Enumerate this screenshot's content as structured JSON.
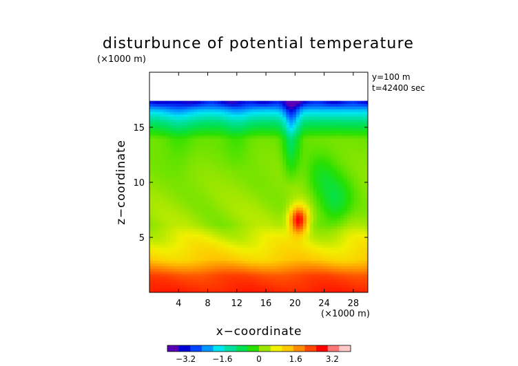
{
  "chart_data": {
    "type": "heatmap",
    "title": "disturbunce of potential temperature",
    "units_label": "(×1000 m)",
    "xlabel": "x−coordinate",
    "ylabel": "z−coordinate",
    "x_units": "(×1000 m)",
    "annotations": [
      "y=100 m",
      "t=42400 sec"
    ],
    "xlim": [
      0,
      30
    ],
    "ylim": [
      0,
      20
    ],
    "x_ticks": [
      4,
      8,
      12,
      16,
      20,
      24,
      28
    ],
    "x_tick_labels": [
      "4",
      "8",
      "12",
      "16",
      "20",
      "24",
      "28"
    ],
    "y_ticks": [
      5,
      10,
      15
    ],
    "y_tick_labels": [
      "5",
      "10",
      "15"
    ],
    "data_top": 17.4,
    "colorbar": {
      "min": -4,
      "max": 4,
      "tick_values": [
        -3.2,
        -1.6,
        0,
        1.6,
        3.2
      ],
      "tick_labels": [
        "−3.2",
        "−1.6",
        "0",
        "1.6",
        "3.2"
      ],
      "colors": [
        "#5a00b4",
        "#0000d6",
        "#0046ff",
        "#0096ff",
        "#00e6f0",
        "#00e0a0",
        "#00e050",
        "#28e000",
        "#9ce600",
        "#f0f000",
        "#ffc800",
        "#ff8c00",
        "#ff4600",
        "#ff0000",
        "#ff7878",
        "#ffc8c8"
      ]
    }
  }
}
